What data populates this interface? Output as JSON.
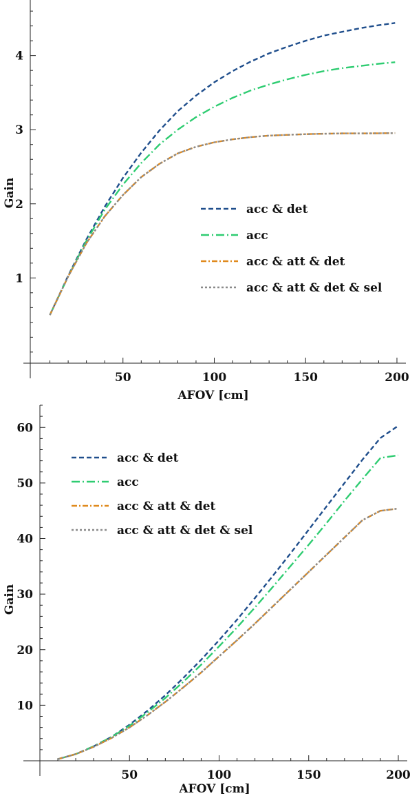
{
  "colors": {
    "acc_det": "#1f4e8c",
    "acc": "#2ecc71",
    "acc_att_det": "#e08a1e",
    "acc_att_det_sel": "#8a8a8a"
  },
  "chart_data": [
    {
      "type": "line",
      "xlabel": "AFOV [cm]",
      "ylabel": "Gain",
      "xlim": [
        0,
        200
      ],
      "ylim": [
        -0.15,
        4.75
      ],
      "xticks": [
        50,
        100,
        150,
        200
      ],
      "yticks": [
        1,
        2,
        3,
        4
      ],
      "xtick_labels": [
        "50",
        "100",
        "150",
        "200"
      ],
      "ytick_labels": [
        "1",
        "2",
        "3",
        "4"
      ],
      "legend_position": "center-right",
      "series": [
        {
          "name": "acc & det",
          "color": "#1f4e8c",
          "dash": "7,4",
          "x": [
            10,
            20,
            30,
            40,
            50,
            60,
            70,
            80,
            90,
            100,
            110,
            120,
            130,
            140,
            150,
            160,
            170,
            180,
            190,
            199
          ],
          "y": [
            0.5,
            1.03,
            1.52,
            1.96,
            2.35,
            2.69,
            2.99,
            3.25,
            3.46,
            3.64,
            3.79,
            3.92,
            4.03,
            4.12,
            4.2,
            4.27,
            4.32,
            4.37,
            4.41,
            4.44
          ]
        },
        {
          "name": "acc",
          "color": "#2ecc71",
          "dash": "12,4,2,4",
          "x": [
            10,
            20,
            30,
            40,
            50,
            60,
            70,
            80,
            90,
            100,
            110,
            120,
            130,
            140,
            150,
            160,
            170,
            180,
            190,
            199
          ],
          "y": [
            0.5,
            1.02,
            1.5,
            1.92,
            2.26,
            2.55,
            2.8,
            3.0,
            3.17,
            3.31,
            3.43,
            3.53,
            3.61,
            3.68,
            3.74,
            3.79,
            3.83,
            3.86,
            3.89,
            3.91
          ]
        },
        {
          "name": "acc & att & det",
          "color": "#e08a1e",
          "dash": "8,3,2,3",
          "x": [
            10,
            20,
            30,
            40,
            50,
            60,
            70,
            80,
            90,
            100,
            110,
            120,
            130,
            140,
            150,
            160,
            170,
            180,
            190,
            199
          ],
          "y": [
            0.5,
            1.02,
            1.47,
            1.83,
            2.12,
            2.36,
            2.54,
            2.68,
            2.77,
            2.83,
            2.87,
            2.9,
            2.92,
            2.93,
            2.94,
            2.945,
            2.95,
            2.95,
            2.952,
            2.955
          ]
        },
        {
          "name": "acc & att & det & sel",
          "color": "#8a8a8a",
          "dash": "3,3",
          "x": [
            10,
            20,
            30,
            40,
            50,
            60,
            70,
            80,
            90,
            100,
            110,
            120,
            130,
            140,
            150,
            160,
            170,
            180,
            190,
            199
          ],
          "y": [
            0.5,
            1.02,
            1.47,
            1.83,
            2.12,
            2.36,
            2.54,
            2.68,
            2.77,
            2.83,
            2.87,
            2.9,
            2.92,
            2.93,
            2.94,
            2.945,
            2.95,
            2.95,
            2.952,
            2.955
          ]
        }
      ]
    },
    {
      "type": "line",
      "xlabel": "AFOV [cm]",
      "ylabel": "Gain",
      "xlim": [
        0,
        200
      ],
      "ylim": [
        0,
        64
      ],
      "xticks": [
        50,
        100,
        150,
        200
      ],
      "yticks": [
        10,
        20,
        30,
        40,
        50,
        60
      ],
      "xtick_labels": [
        "50",
        "100",
        "150",
        "200"
      ],
      "ytick_labels": [
        "10",
        "20",
        "30",
        "40",
        "50",
        "60"
      ],
      "legend_position": "top-left",
      "series": [
        {
          "name": "acc & det",
          "color": "#1f4e8c",
          "dash": "7,4",
          "x": [
            10,
            20,
            30,
            40,
            50,
            60,
            70,
            80,
            90,
            100,
            110,
            120,
            130,
            140,
            150,
            160,
            170,
            180,
            190,
            200
          ],
          "y": [
            0.3,
            1.2,
            2.6,
            4.3,
            6.5,
            9.0,
            11.8,
            14.9,
            18.2,
            21.7,
            25.4,
            29.3,
            33.3,
            37.4,
            41.6,
            45.8,
            50.0,
            54.2,
            58.1,
            60.3
          ]
        },
        {
          "name": "acc",
          "color": "#2ecc71",
          "dash": "12,4,2,4",
          "x": [
            10,
            20,
            30,
            40,
            50,
            60,
            70,
            80,
            90,
            100,
            110,
            120,
            130,
            140,
            150,
            160,
            170,
            180,
            190,
            200
          ],
          "y": [
            0.3,
            1.2,
            2.6,
            4.3,
            6.3,
            8.7,
            11.3,
            14.2,
            17.3,
            20.6,
            24.0,
            27.6,
            31.3,
            35.1,
            38.9,
            42.8,
            46.8,
            50.7,
            54.5,
            55.0
          ]
        },
        {
          "name": "acc & att & det",
          "color": "#e08a1e",
          "dash": "8,3,2,3",
          "x": [
            10,
            20,
            30,
            40,
            50,
            60,
            70,
            80,
            90,
            100,
            110,
            120,
            130,
            140,
            150,
            160,
            170,
            180,
            190,
            200
          ],
          "y": [
            0.3,
            1.2,
            2.5,
            4.1,
            6.0,
            8.2,
            10.6,
            13.2,
            15.9,
            18.8,
            21.7,
            24.7,
            27.8,
            30.9,
            34.0,
            37.1,
            40.2,
            43.3,
            45.0,
            45.4
          ]
        },
        {
          "name": "acc & att & det & sel",
          "color": "#8a8a8a",
          "dash": "3,3",
          "x": [
            10,
            20,
            30,
            40,
            50,
            60,
            70,
            80,
            90,
            100,
            110,
            120,
            130,
            140,
            150,
            160,
            170,
            180,
            190,
            200
          ],
          "y": [
            0.3,
            1.2,
            2.5,
            4.1,
            6.0,
            8.2,
            10.6,
            13.2,
            15.9,
            18.8,
            21.7,
            24.7,
            27.8,
            30.9,
            34.0,
            37.1,
            40.2,
            43.3,
            45.0,
            45.4
          ]
        }
      ]
    }
  ]
}
